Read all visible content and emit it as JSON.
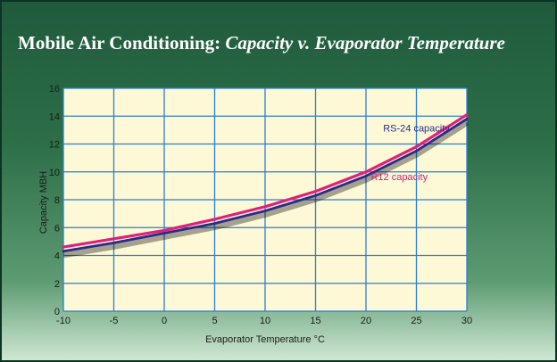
{
  "title_main": "Mobile Air Conditioning:",
  "title_sub": "Capacity v. Evaporator Temperature",
  "colors": {
    "rs24": "#2a2a8c",
    "r12": "#e0207a",
    "grid": "#2a7fd0",
    "plot_bg": "#fdf8d6"
  },
  "chart_data": {
    "type": "line",
    "title": "Mobile Air Conditioning: Capacity v. Evaporator Temperature",
    "xlabel": "Evaporator Temperature °C",
    "ylabel": "Capacity MBH",
    "xlim": [
      -10,
      30
    ],
    "ylim": [
      0,
      16
    ],
    "xticks": [
      -10,
      -5,
      0,
      5,
      10,
      15,
      20,
      25,
      30
    ],
    "yticks": [
      0,
      2,
      4,
      6,
      8,
      10,
      12,
      14,
      16
    ],
    "grid": true,
    "series": [
      {
        "name": "RS-24 capacity",
        "x": [
          -10,
          -5,
          0,
          5,
          10,
          15,
          20,
          25,
          30
        ],
        "values": [
          4.3,
          4.9,
          5.6,
          6.3,
          7.2,
          8.3,
          9.7,
          11.5,
          13.8
        ]
      },
      {
        "name": "R12 capacity",
        "x": [
          -10,
          -5,
          0,
          5,
          10,
          15,
          20,
          25,
          30
        ],
        "values": [
          4.6,
          5.2,
          5.8,
          6.6,
          7.5,
          8.6,
          10.0,
          11.8,
          14.1
        ]
      }
    ]
  }
}
